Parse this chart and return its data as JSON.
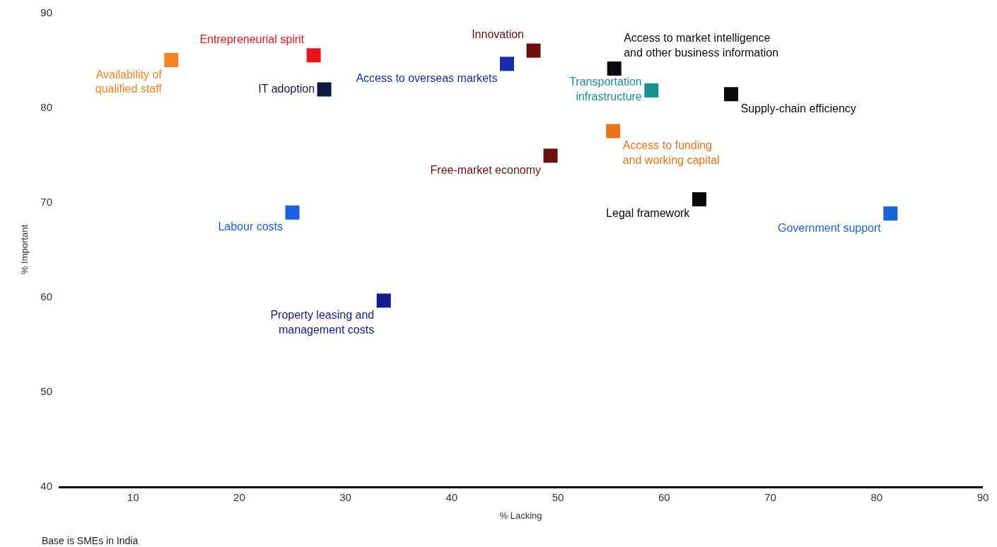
{
  "chart_data": {
    "type": "scatter",
    "xlabel": "% Lacking",
    "ylabel": "% Important",
    "annotations": [
      "Base is SMEs in India"
    ],
    "xlim": [
      3,
      90
    ],
    "ylim": [
      40,
      90
    ],
    "xticks": [
      10,
      20,
      30,
      40,
      50,
      60,
      70,
      80,
      90
    ],
    "yticks": [
      40,
      50,
      60,
      70,
      80,
      90
    ],
    "marker": "square",
    "series": [
      {
        "name": "Availability of\nqualified staff",
        "color": "#f58220",
        "x": [
          13.6
        ],
        "values": [
          85.0
        ]
      },
      {
        "name": "Entrepreneurial spirit",
        "color": "#e8141b",
        "x": [
          27.0
        ],
        "values": [
          85.5
        ]
      },
      {
        "name": "IT adoption",
        "color": "#101a40",
        "x": [
          28.0
        ],
        "values": [
          81.9
        ]
      },
      {
        "name": "Access to overseas markets",
        "color": "#1c2ca8",
        "x": [
          45.2
        ],
        "values": [
          84.6
        ]
      },
      {
        "name": "Innovation",
        "color": "#6b1010",
        "x": [
          47.7
        ],
        "values": [
          86.0
        ]
      },
      {
        "name": "Free-market economy",
        "color": "#6b1010",
        "x": [
          49.3
        ],
        "values": [
          74.9
        ]
      },
      {
        "name": "Access to market intelligence\nand other business information",
        "color": "#0a0a12",
        "x": [
          55.3
        ],
        "values": [
          84.1
        ]
      },
      {
        "name": "Transportation\ninfrastructure",
        "color": "#1a9090",
        "x": [
          58.8
        ],
        "values": [
          81.8
        ]
      },
      {
        "name": "Supply-chain efficiency",
        "color": "#0a0a0a",
        "x": [
          66.3
        ],
        "values": [
          81.4
        ]
      },
      {
        "name": "Access to funding\nand working capital",
        "color": "#e8731a",
        "x": [
          55.2
        ],
        "values": [
          77.5
        ]
      },
      {
        "name": "Legal framework",
        "color": "#050505",
        "x": [
          63.3
        ],
        "values": [
          70.3
        ]
      },
      {
        "name": "Government support",
        "color": "#1a63d8",
        "x": [
          81.3
        ],
        "values": [
          68.8
        ]
      },
      {
        "name": "Labour costs",
        "color": "#1a5fe0",
        "x": [
          25.0
        ],
        "values": [
          68.9
        ]
      },
      {
        "name": "Property leasing and\nmanagement costs",
        "color": "#121a8c",
        "x": [
          33.6
        ],
        "values": [
          59.6
        ]
      }
    ]
  }
}
